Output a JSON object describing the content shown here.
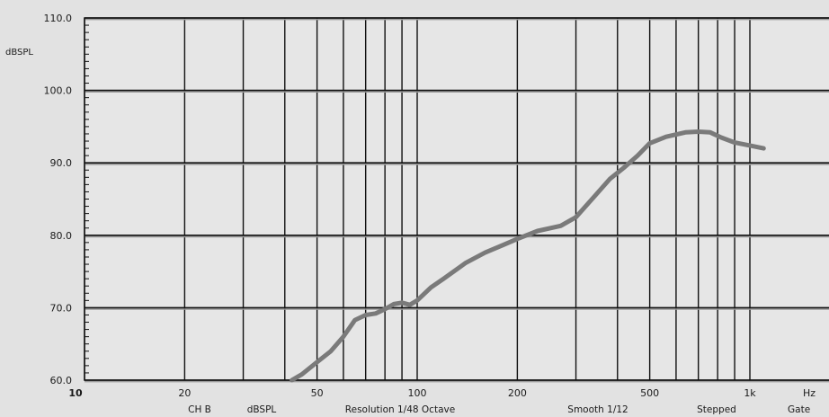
{
  "chart_data": {
    "type": "line",
    "title": "",
    "xlabel": "",
    "ylabel": "dBSPL",
    "x_scale": "log",
    "xlim": [
      10,
      1000
    ],
    "ylim": [
      60,
      110
    ],
    "grid": true,
    "ytick_labels": [
      "60.0",
      "70.0",
      "80.0",
      "90.0",
      "100.0",
      "110.0"
    ],
    "xtick_labels": [
      {
        "value": 10,
        "label": "10"
      },
      {
        "value": 20,
        "label": "20"
      },
      {
        "value": 50,
        "label": "50"
      },
      {
        "value": 100,
        "label": "100"
      },
      {
        "value": 200,
        "label": "200"
      },
      {
        "value": 500,
        "label": "500"
      },
      {
        "value": 1000,
        "label": "1k"
      }
    ],
    "x_unit_label": "Hz",
    "series": [
      {
        "color": "#7a7a7a",
        "x": [
          42,
          45,
          50,
          55,
          60,
          65,
          70,
          75,
          80,
          85,
          90,
          95,
          100,
          110,
          120,
          140,
          160,
          180,
          200,
          230,
          270,
          300,
          340,
          380,
          420,
          460,
          500,
          560,
          640,
          700,
          760,
          820,
          900,
          1000,
          1100
        ],
        "y": [
          60.0,
          60.8,
          62.5,
          64.0,
          66.0,
          68.3,
          69.0,
          69.2,
          69.8,
          70.5,
          70.7,
          70.4,
          71.0,
          72.8,
          74.0,
          76.2,
          77.6,
          78.6,
          79.5,
          80.6,
          81.3,
          82.5,
          85.3,
          87.8,
          89.4,
          91.0,
          92.7,
          93.6,
          94.2,
          94.3,
          94.2,
          93.5,
          92.8,
          92.4,
          92.0
        ]
      }
    ],
    "footer_labels": [
      "CH B",
      "dBSPL",
      "Resolution 1/48 Octave",
      "Smooth 1/12",
      "Stepped",
      "Gate"
    ]
  }
}
